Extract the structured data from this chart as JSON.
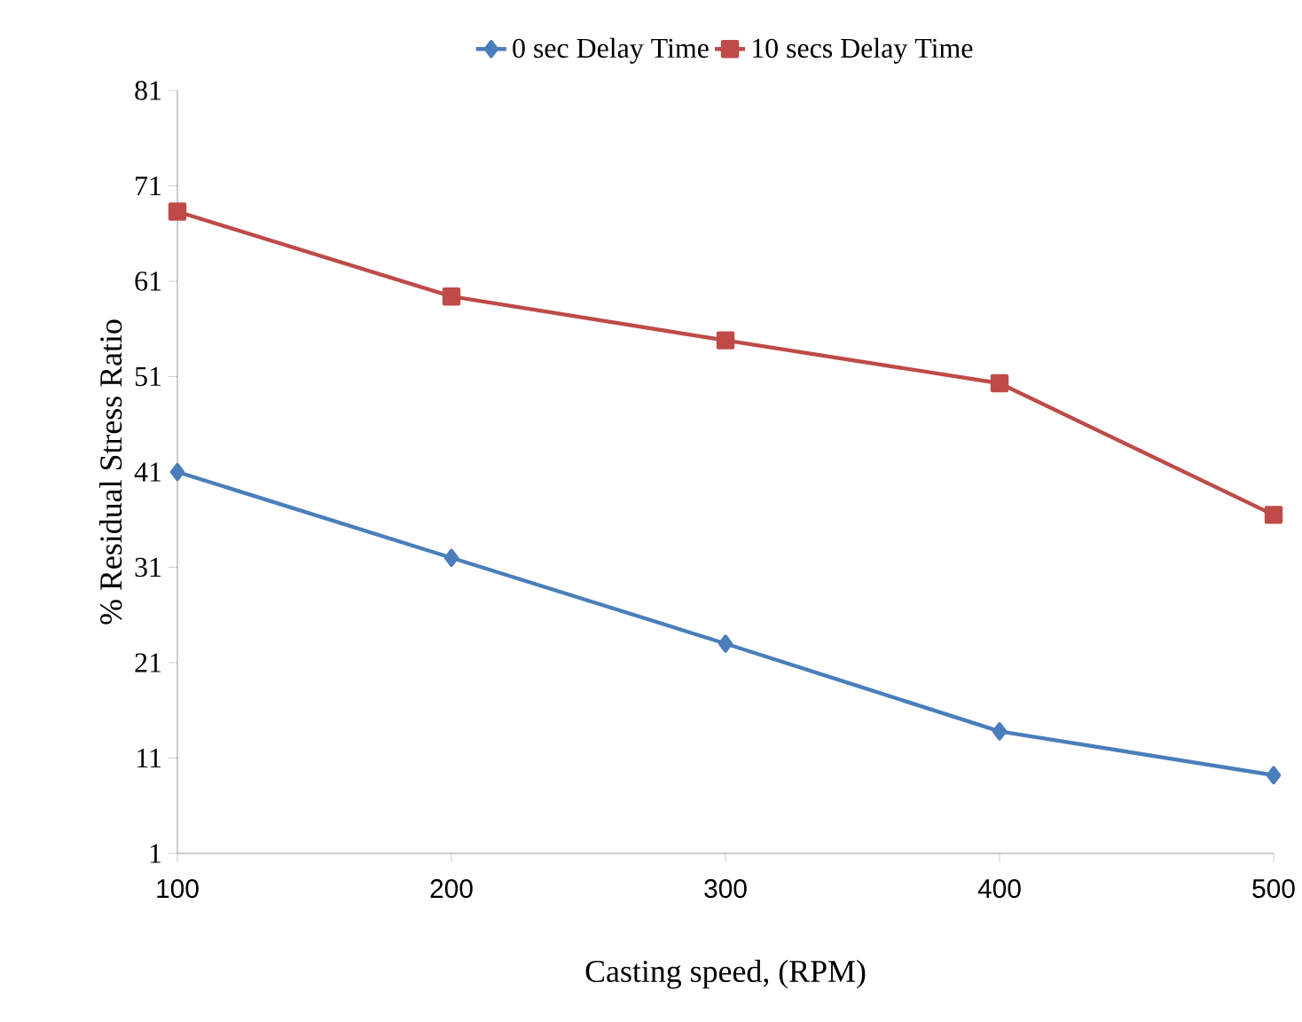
{
  "chart_data": {
    "type": "line",
    "xlabel": "Casting speed, (RPM)",
    "ylabel": "% Residual Stress Ratio",
    "x": [
      100,
      200,
      300,
      400,
      500
    ],
    "series": [
      {
        "name": "0 sec Delay Time",
        "color": "#4a7ebb",
        "marker": "diamond",
        "values": [
          41,
          32,
          23,
          13.8,
          9.2
        ]
      },
      {
        "name": "10 secs Delay Time",
        "color": "#be4b48",
        "marker": "square",
        "values": [
          68.3,
          59.4,
          54.8,
          50.3,
          36.5
        ]
      }
    ],
    "xlim": [
      100,
      500
    ],
    "xticks": [
      100,
      200,
      300,
      400,
      500
    ],
    "ylim": [
      1,
      81
    ],
    "yticks": [
      1,
      11,
      21,
      31,
      41,
      51,
      61,
      71,
      81
    ],
    "grid": false,
    "legend": "top",
    "line_style": "solid"
  }
}
